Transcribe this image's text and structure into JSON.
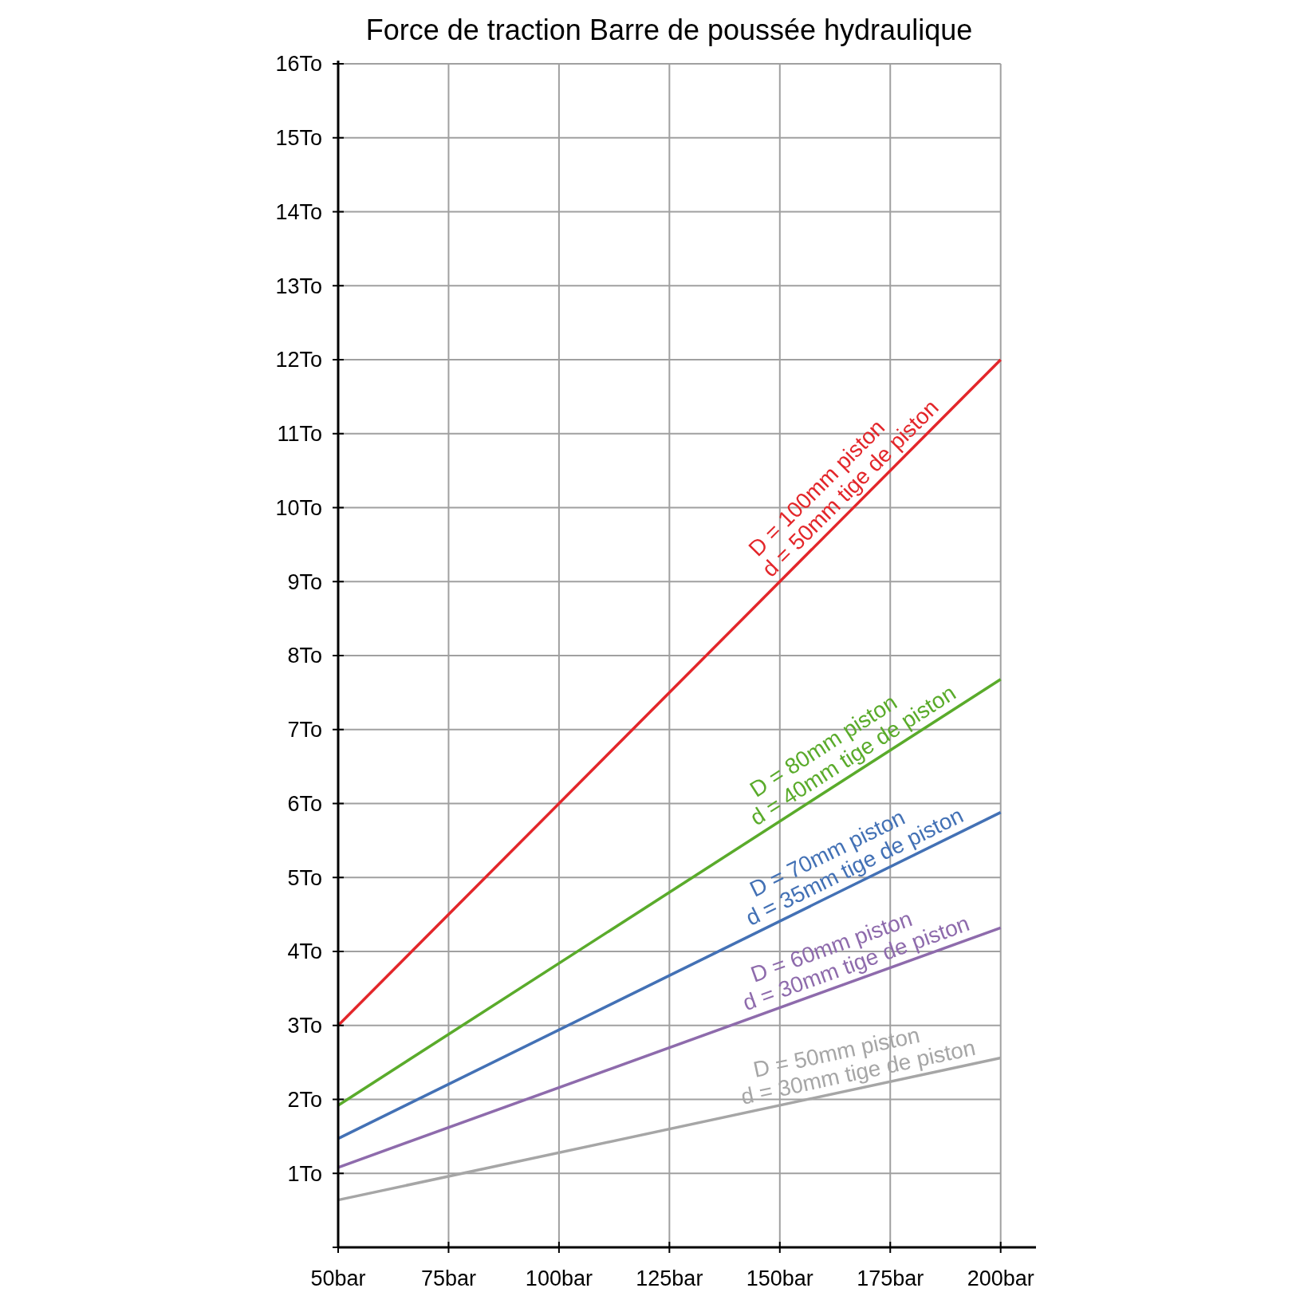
{
  "chart_data": {
    "type": "line",
    "title": "Force de traction Barre de poussée hydraulique",
    "xlim": [
      50,
      208
    ],
    "xticks": [
      {
        "value": 50,
        "label": "50bar"
      },
      {
        "value": 75,
        "label": "75bar"
      },
      {
        "value": 100,
        "label": "100bar"
      },
      {
        "value": 125,
        "label": "125bar"
      },
      {
        "value": 150,
        "label": "150bar"
      },
      {
        "value": 175,
        "label": "175bar"
      },
      {
        "value": 200,
        "label": "200bar"
      }
    ],
    "ylim": [
      0,
      16
    ],
    "yticks": [
      {
        "value": 0,
        "label": null
      },
      {
        "value": 1,
        "label": "1To"
      },
      {
        "value": 2,
        "label": "2To"
      },
      {
        "value": 3,
        "label": "3To"
      },
      {
        "value": 4,
        "label": "4To"
      },
      {
        "value": 5,
        "label": "5To"
      },
      {
        "value": 6,
        "label": "6To"
      },
      {
        "value": 7,
        "label": "7To"
      },
      {
        "value": 8,
        "label": "8To"
      },
      {
        "value": 9,
        "label": "9To"
      },
      {
        "value": 10,
        "label": "10To"
      },
      {
        "value": 11,
        "label": "11To"
      },
      {
        "value": 12,
        "label": "12To"
      },
      {
        "value": 13,
        "label": "13To"
      },
      {
        "value": 14,
        "label": "14To"
      },
      {
        "value": 15,
        "label": "15To"
      },
      {
        "value": 16,
        "label": "16To"
      }
    ],
    "grid": true,
    "marker": "none",
    "line_style": "solid",
    "x": [
      50,
      200
    ],
    "series": [
      {
        "name": "D = 100mm piston",
        "color": "#e3262a",
        "values": [
          3,
          12
        ]
      },
      {
        "name": "D = 80mm piston",
        "color": "#5aab2b",
        "values": [
          1.92,
          7.68
        ]
      },
      {
        "name": "D = 70mm piston",
        "color": "#4371b5",
        "values": [
          1.47,
          5.88
        ]
      },
      {
        "name": "D = 60mm piston",
        "color": "#8e6bac",
        "values": [
          1.08,
          4.32
        ]
      },
      {
        "name": "D = 50mm piston",
        "color": "#a6a6a6",
        "values": [
          0.64,
          2.56
        ]
      }
    ],
    "annotations": [
      "d = 50mm tige de piston",
      "d = 40mm tige de piston",
      "d = 35mm tige de piston",
      "d = 30mm tige de piston",
      "d = 30mm tige de piston"
    ]
  }
}
